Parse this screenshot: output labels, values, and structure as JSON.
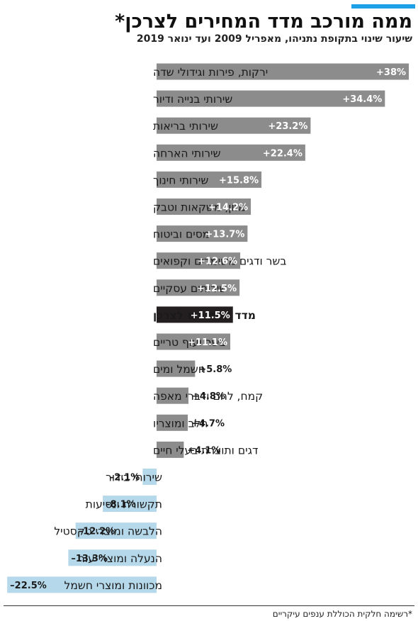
{
  "header": {
    "title": "ממה מורכב מדד המחירים לצרכן*",
    "subtitle": "שיעור שינוי בתקופת נתניהו, מאפריל 2009 ועד ינואר 2019"
  },
  "footnote": "*רשימה חלקית הכוללת ענפים עיקריים",
  "colors": {
    "positive": "#8c8c8c",
    "highlight": "#231f20",
    "negative": "#b5d8ea",
    "accent": "#1ea0e6"
  },
  "chart_data": {
    "type": "bar",
    "orientation": "horizontal",
    "categories": [
      "ירקות, פירות וגידולי שדה",
      "שירותי בנייה ודיור",
      "שירותי בריאות",
      "שירותי הארחה",
      "שירותי חינוך",
      "מזון, משקאות וטבק",
      "מסים וביטוח",
      "בשר ודגים משומרים וקפואים",
      "שירותים עסקיים",
      "מדד המחירים לצרכן",
      "בשר ועוף טריים",
      "חשמל ומים",
      "קמח, לחם ודברי מאפה",
      "חלב ומוצריו",
      "דגים ותוצרת בעלי חיים",
      "שירותי בידור",
      "תקשורת ונסיעות",
      "הלבשה ומוצרי טקסטיל",
      "הנעלה ומוצרי עור",
      "מכוונות ומוצרי חשמל"
    ],
    "values": [
      38,
      34.4,
      23.2,
      22.4,
      15.8,
      14.2,
      13.7,
      12.6,
      12.5,
      11.5,
      11.1,
      5.8,
      4.8,
      4.7,
      4.1,
      -2.1,
      -8.1,
      -12.2,
      -13.3,
      -22.5
    ],
    "value_labels": [
      "+38%",
      "+34.4%",
      "+23.2%",
      "+22.4%",
      "+15.8%",
      "+14.2%",
      "+13.7%",
      "+12.6%",
      "+12.5%",
      "+11.5%",
      "+11.1%",
      "+5.8%",
      "+4.8%",
      "+4.7%",
      "+4.1%",
      "–2.1%",
      "–8.1%",
      "–12.2%",
      "–13.3%",
      "–22.5%"
    ],
    "highlight_category": "מדד המחירים לצרכן",
    "xlim": [
      -22.5,
      38
    ],
    "unit": "%"
  }
}
